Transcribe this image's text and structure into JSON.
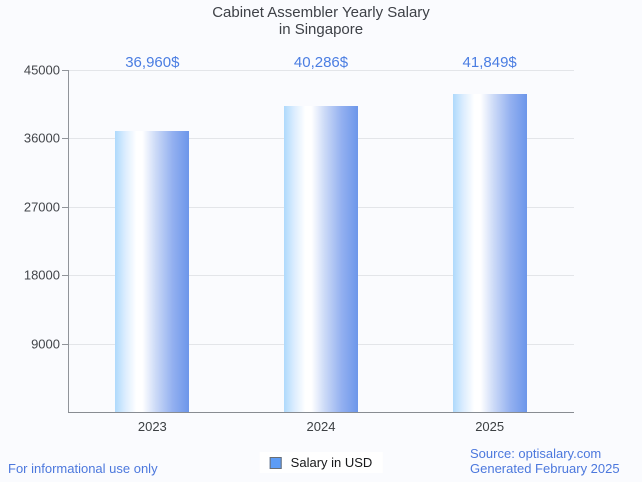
{
  "title": {
    "line1": "Cabinet Assembler Yearly Salary",
    "line2": "in Singapore"
  },
  "legend": {
    "label": "Salary in USD"
  },
  "footer": {
    "left_note": "For informational use only",
    "source_line": "Source: optisalary.com",
    "generated_line": "Generated February 2025"
  },
  "colors": {
    "background": "#fafbfe",
    "value_label_blue": "#4a7de2",
    "footer_blue": "#4c78dd",
    "bar_edge_light": "#aed9fc",
    "bar_center": "#ffffff",
    "bar_edge_dark": "#6c96ea",
    "legend_swatch": "#5d9cf5",
    "grid": "#e3e5e9",
    "axis": "#888c92",
    "title_text": "#3e4147"
  },
  "chart_data": {
    "type": "bar",
    "title": "Cabinet Assembler Yearly Salary in Singapore",
    "categories": [
      "2023",
      "2024",
      "2025"
    ],
    "values": [
      36960,
      40286,
      41849
    ],
    "value_labels": [
      "36,960$",
      "40,286$",
      "41,849$"
    ],
    "series_name": "Salary in USD",
    "xlabel": "",
    "ylabel": "",
    "ylim": [
      0,
      45000
    ],
    "y_ticks": [
      {
        "value": 45000,
        "label": "45000"
      },
      {
        "value": 36000,
        "label": "36000"
      },
      {
        "value": 27000,
        "label": "27000"
      },
      {
        "value": 18000,
        "label": "18000"
      },
      {
        "value": 9000,
        "label": "9000"
      }
    ],
    "grid": true,
    "legend_position": "bottom"
  }
}
